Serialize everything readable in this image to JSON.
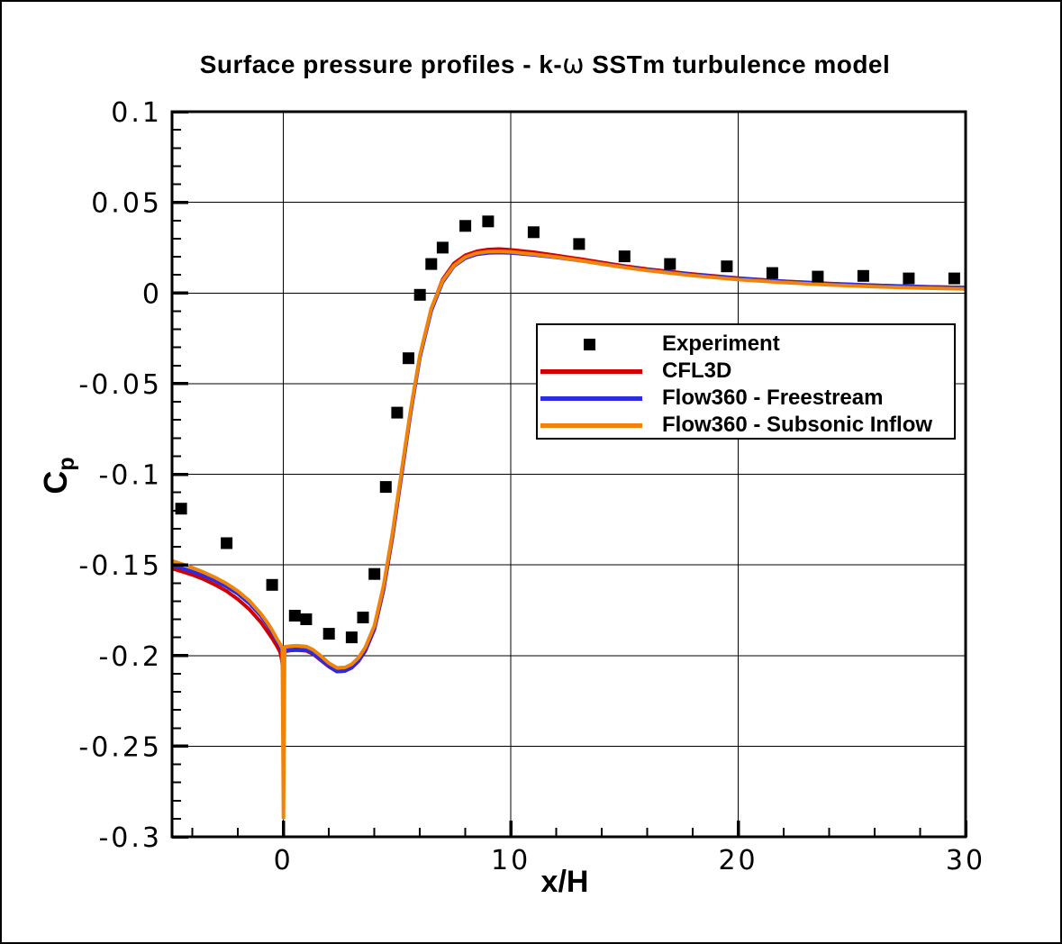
{
  "window": {
    "background": "#ffffff",
    "frame_border_color": "#000000"
  },
  "chart_data": {
    "type": "line",
    "title": "Surface pressure profiles - k-ω SSTm turbulence model",
    "title_parts": {
      "pre": "Surface pressure profiles - k-",
      "omega": "ω",
      "post": " SSTm turbulence model"
    },
    "xlabel": "x/H",
    "ylabel": {
      "main": "C",
      "sub": "p"
    },
    "xlim": [
      -4.9,
      30
    ],
    "ylim": [
      -0.3,
      0.1
    ],
    "grid": true,
    "grid_color": "#000000",
    "axis_color": "#000000",
    "x_ticks": {
      "values": [
        0,
        10,
        20,
        30
      ],
      "labels": [
        "0",
        "10",
        "20",
        "30"
      ],
      "minor_step": 2
    },
    "y_ticks": {
      "values": [
        0.1,
        0.05,
        0,
        -0.05,
        -0.1,
        -0.15,
        -0.2,
        -0.25,
        -0.3
      ],
      "labels": [
        "0.1",
        "0.05",
        "0",
        "-0.05",
        "-0.1",
        "-0.15",
        "-0.2",
        "-0.25",
        "-0.3"
      ],
      "minor_step": 0.01
    },
    "legend_position": "inside-right-middle",
    "series": [
      {
        "name": "Experiment",
        "type": "scatter",
        "marker": "square",
        "marker_size": 13,
        "color": "#000000",
        "points": [
          [
            -4.5,
            -0.119
          ],
          [
            -2.5,
            -0.138
          ],
          [
            -0.5,
            -0.161
          ],
          [
            0.5,
            -0.178
          ],
          [
            1,
            -0.18
          ],
          [
            2,
            -0.188
          ],
          [
            3,
            -0.19
          ],
          [
            3.5,
            -0.179
          ],
          [
            4,
            -0.155
          ],
          [
            4.5,
            -0.107
          ],
          [
            5,
            -0.066
          ],
          [
            5.5,
            -0.036
          ],
          [
            6,
            -0.001
          ],
          [
            6.5,
            0.016
          ],
          [
            7,
            0.025
          ],
          [
            8,
            0.037
          ],
          [
            9,
            0.0395
          ],
          [
            11,
            0.0335
          ],
          [
            13,
            0.027
          ],
          [
            15,
            0.0202
          ],
          [
            17,
            0.016
          ],
          [
            19.5,
            0.0147
          ],
          [
            21.5,
            0.011
          ],
          [
            23.5,
            0.009
          ],
          [
            25.5,
            0.0094
          ],
          [
            27.5,
            0.008
          ],
          [
            29.5,
            0.008
          ]
        ]
      },
      {
        "name": "CFL3D",
        "type": "line",
        "color": "#d20000",
        "line_width": 4,
        "points": [
          [
            -4.9,
            -0.152
          ],
          [
            -4.5,
            -0.1535
          ],
          [
            -4,
            -0.1555
          ],
          [
            -3.5,
            -0.158
          ],
          [
            -3,
            -0.161
          ],
          [
            -2.5,
            -0.1645
          ],
          [
            -2,
            -0.169
          ],
          [
            -1.5,
            -0.1745
          ],
          [
            -1,
            -0.1815
          ],
          [
            -0.7,
            -0.1868
          ],
          [
            -0.5,
            -0.1905
          ],
          [
            -0.3,
            -0.1945
          ],
          [
            -0.15,
            -0.198
          ],
          [
            -0.07,
            -0.2025
          ],
          [
            -0.03,
            -0.2075
          ],
          [
            0.05,
            -0.1978
          ],
          [
            0.3,
            -0.1972
          ],
          [
            0.6,
            -0.197
          ],
          [
            1,
            -0.1974
          ],
          [
            1.3,
            -0.1992
          ],
          [
            1.6,
            -0.2022
          ],
          [
            2,
            -0.2062
          ],
          [
            2.35,
            -0.2088
          ],
          [
            2.7,
            -0.2085
          ],
          [
            3,
            -0.2068
          ],
          [
            3.3,
            -0.2032
          ],
          [
            3.6,
            -0.1975
          ],
          [
            4,
            -0.1855
          ],
          [
            4.4,
            -0.1638
          ],
          [
            4.8,
            -0.1342
          ],
          [
            5.2,
            -0.0998
          ],
          [
            5.6,
            -0.0655
          ],
          [
            6,
            -0.0352
          ],
          [
            6.5,
            -0.0088
          ],
          [
            7,
            0.0075
          ],
          [
            7.5,
            0.0163
          ],
          [
            8,
            0.0208
          ],
          [
            8.5,
            0.023
          ],
          [
            9,
            0.024
          ],
          [
            9.5,
            0.0242
          ],
          [
            10,
            0.0238
          ],
          [
            11,
            0.0225
          ],
          [
            12,
            0.0207
          ],
          [
            13,
            0.0188
          ],
          [
            14,
            0.0168
          ],
          [
            15,
            0.0149
          ],
          [
            16,
            0.0132
          ],
          [
            18,
            0.0104
          ],
          [
            20,
            0.0082
          ],
          [
            22,
            0.0065
          ],
          [
            24,
            0.0052
          ],
          [
            26,
            0.0042
          ],
          [
            28,
            0.0035
          ],
          [
            30,
            0.003
          ]
        ]
      },
      {
        "name": "Flow360 - Freestream",
        "type": "line",
        "color": "#2b2be4",
        "line_width": 4,
        "points": [
          [
            -4.9,
            -0.1503
          ],
          [
            -4.5,
            -0.1517
          ],
          [
            -4,
            -0.1537
          ],
          [
            -3.5,
            -0.156
          ],
          [
            -3,
            -0.1588
          ],
          [
            -2.5,
            -0.162
          ],
          [
            -2,
            -0.166
          ],
          [
            -1.5,
            -0.1712
          ],
          [
            -1,
            -0.178
          ],
          [
            -0.7,
            -0.1832
          ],
          [
            -0.5,
            -0.1872
          ],
          [
            -0.3,
            -0.1917
          ],
          [
            -0.15,
            -0.1948
          ],
          [
            -0.05,
            -0.1985
          ],
          [
            0.05,
            -0.1972
          ],
          [
            0.3,
            -0.1968
          ],
          [
            0.6,
            -0.1966
          ],
          [
            1,
            -0.197
          ],
          [
            1.3,
            -0.1988
          ],
          [
            1.6,
            -0.2018
          ],
          [
            2,
            -0.206
          ],
          [
            2.35,
            -0.2088
          ],
          [
            2.7,
            -0.2085
          ],
          [
            3,
            -0.2065
          ],
          [
            3.3,
            -0.2028
          ],
          [
            3.6,
            -0.197
          ],
          [
            4,
            -0.1848
          ],
          [
            4.4,
            -0.1628
          ],
          [
            4.8,
            -0.133
          ],
          [
            5.2,
            -0.0988
          ],
          [
            5.6,
            -0.065
          ],
          [
            6,
            -0.0355
          ],
          [
            6.5,
            -0.0098
          ],
          [
            7,
            0.006
          ],
          [
            7.5,
            0.0148
          ],
          [
            8,
            0.0192
          ],
          [
            8.5,
            0.0213
          ],
          [
            9,
            0.0221
          ],
          [
            9.5,
            0.0223
          ],
          [
            10,
            0.0221
          ],
          [
            11,
            0.021
          ],
          [
            12,
            0.0196
          ],
          [
            13,
            0.0179
          ],
          [
            14,
            0.0161
          ],
          [
            15,
            0.0143
          ],
          [
            16,
            0.0127
          ],
          [
            18,
            0.0101
          ],
          [
            20,
            0.008
          ],
          [
            22,
            0.0064
          ],
          [
            24,
            0.0051
          ],
          [
            26,
            0.0042
          ],
          [
            28,
            0.0035
          ],
          [
            30,
            0.0029
          ]
        ]
      },
      {
        "name": "Flow360 - Subsonic Inflow",
        "type": "line",
        "color": "#f0830a",
        "line_width": 4,
        "spike_at_step": {
          "x": 0,
          "cp_bottom": -0.2895
        },
        "points": [
          [
            -4.9,
            -0.1478
          ],
          [
            -4.5,
            -0.1494
          ],
          [
            -4,
            -0.1516
          ],
          [
            -3.5,
            -0.1541
          ],
          [
            -3,
            -0.157
          ],
          [
            -2.5,
            -0.1603
          ],
          [
            -2,
            -0.1645
          ],
          [
            -1.5,
            -0.1698
          ],
          [
            -1,
            -0.1768
          ],
          [
            -0.7,
            -0.182
          ],
          [
            -0.5,
            -0.186
          ],
          [
            -0.3,
            -0.1905
          ],
          [
            -0.15,
            -0.1936
          ],
          [
            -0.05,
            -0.196
          ],
          [
            0,
            -0.2895
          ],
          [
            0.05,
            -0.1952
          ],
          [
            0.3,
            -0.1948
          ],
          [
            0.6,
            -0.1946
          ],
          [
            1,
            -0.195
          ],
          [
            1.3,
            -0.1968
          ],
          [
            1.6,
            -0.1998
          ],
          [
            2,
            -0.2042
          ],
          [
            2.35,
            -0.2068
          ],
          [
            2.7,
            -0.2066
          ],
          [
            3,
            -0.2048
          ],
          [
            3.3,
            -0.2012
          ],
          [
            3.6,
            -0.1955
          ],
          [
            4,
            -0.1835
          ],
          [
            4.4,
            -0.1615
          ],
          [
            4.8,
            -0.1318
          ],
          [
            5.2,
            -0.0975
          ],
          [
            5.6,
            -0.0638
          ],
          [
            6,
            -0.0342
          ],
          [
            6.5,
            -0.0085
          ],
          [
            7,
            0.0068
          ],
          [
            7.5,
            0.0152
          ],
          [
            8,
            0.0198
          ],
          [
            8.5,
            0.022
          ],
          [
            9,
            0.0228
          ],
          [
            9.5,
            0.023
          ],
          [
            10,
            0.0227
          ],
          [
            11,
            0.0214
          ],
          [
            12,
            0.0198
          ],
          [
            13,
            0.018
          ],
          [
            14,
            0.016
          ],
          [
            15,
            0.0141
          ],
          [
            16,
            0.0124
          ],
          [
            18,
            0.0096
          ],
          [
            20,
            0.0074
          ],
          [
            22,
            0.0058
          ],
          [
            24,
            0.0045
          ],
          [
            26,
            0.0035
          ],
          [
            28,
            0.0027
          ],
          [
            30,
            0.0022
          ]
        ]
      }
    ]
  }
}
